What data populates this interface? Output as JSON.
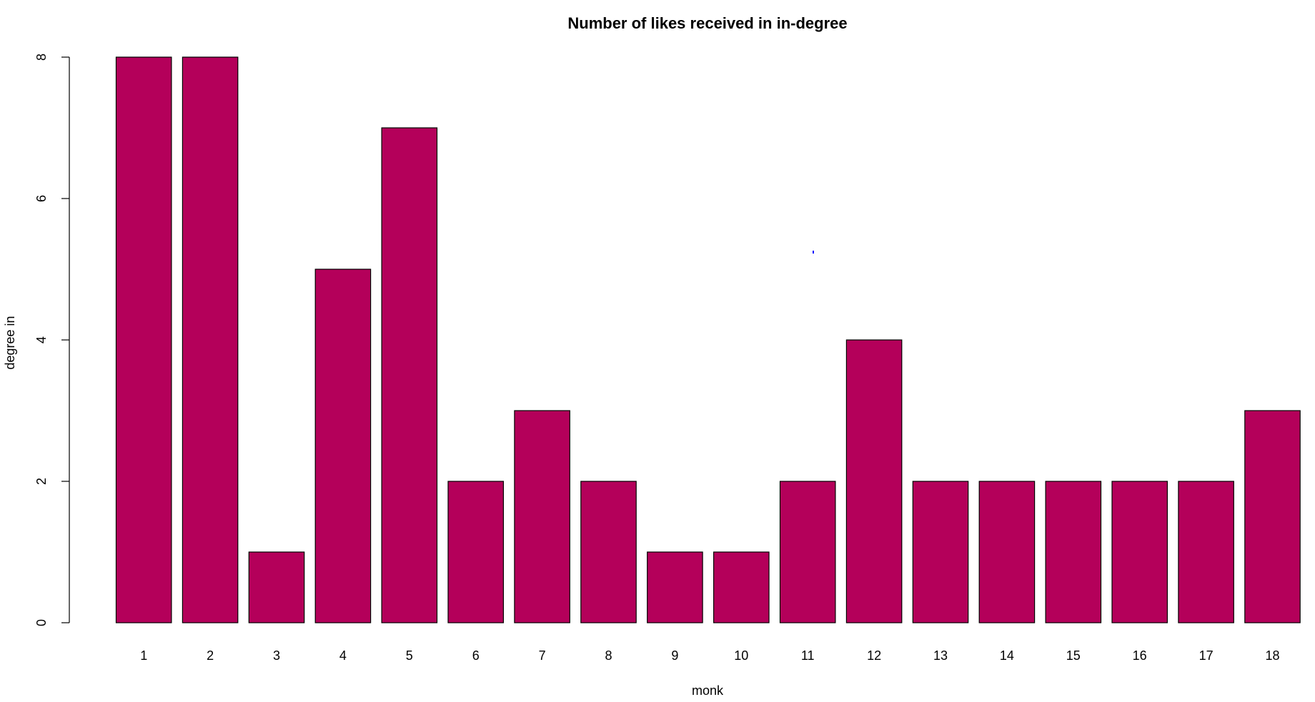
{
  "chart_data": {
    "type": "bar",
    "title": "Number of likes received in in-degree",
    "xlabel": "monk",
    "ylabel": "degree in",
    "categories": [
      "1",
      "2",
      "3",
      "4",
      "5",
      "6",
      "7",
      "8",
      "9",
      "10",
      "11",
      "12",
      "13",
      "14",
      "15",
      "16",
      "17",
      "18"
    ],
    "values": [
      8,
      8,
      1,
      5,
      7,
      2,
      3,
      2,
      1,
      1,
      2,
      4,
      2,
      2,
      2,
      2,
      2,
      3
    ],
    "ylim": [
      0,
      8
    ],
    "yticks": [
      0,
      2,
      4,
      6,
      8
    ],
    "grid": false,
    "colors": {
      "bar": "#B4005A",
      "outline": "#000000",
      "stray_mark": "#0000FF"
    }
  }
}
